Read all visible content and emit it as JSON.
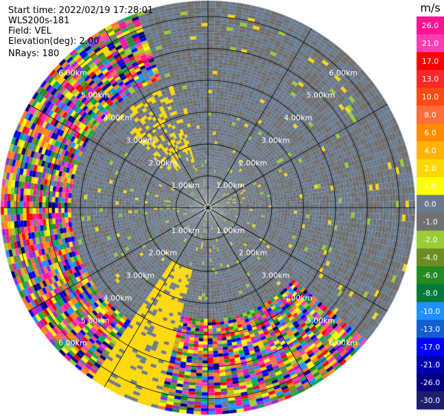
{
  "header": {
    "start_time": "Start time: 2022/02/19 17:28:01",
    "instrument": "WLS200s-181",
    "field": "Field: VEL",
    "elevation": "Elevation(deg): 2.00",
    "nrays": "NRays: 180"
  },
  "chart_data": {
    "type": "heatmap",
    "projection": "polar-ppi",
    "field": "VEL",
    "unit": "m/s",
    "max_range_km": 6.5,
    "range_ring_labels": [
      "1.00km",
      "2.00km",
      "3.00km",
      "4.00km",
      "5.00km",
      "6.00km"
    ],
    "spoke_angles_deg": [
      0,
      30,
      60,
      90,
      120,
      150,
      180,
      210,
      240,
      270,
      300,
      330
    ],
    "colorbar": {
      "title": "m/s",
      "tick_labels": [
        "26.0",
        "21.0",
        "17.0",
        "13.0",
        "10.0",
        "8.0",
        "6.0",
        "4.0",
        "2.0",
        "1.0",
        "0.0",
        "-1.0",
        "-2.0",
        "-4.0",
        "-6.0",
        "-8.0",
        "-10.0",
        "-13.0",
        "-17.0",
        "-21.0",
        "-26.0",
        "-30.0"
      ],
      "colors": [
        "#ff1493",
        "#ff3cb4",
        "#ff0000",
        "#ff2828",
        "#ff4a14",
        "#ff6e3c",
        "#ff8c00",
        "#ffb400",
        "#ffd700",
        "#ffff00",
        "#6a7a8c",
        "#707070",
        "#9acd32",
        "#6b8e23",
        "#228b22",
        "#007a3d",
        "#1e90ff",
        "#1060d0",
        "#0000ff",
        "#0000b0",
        "#000080",
        "#1e1e6e"
      ]
    },
    "sectors": [
      {
        "az_from": 0,
        "az_to": 360,
        "r_from_km": 0.0,
        "r_to_km": 4.5,
        "pattern": "background"
      },
      {
        "az_from": 200,
        "az_to": 340,
        "r_from_km": 4.3,
        "r_to_km": 6.5,
        "pattern": "noise"
      },
      {
        "az_from": 130,
        "az_to": 200,
        "r_from_km": 3.5,
        "r_to_km": 6.5,
        "pattern": "noise"
      },
      {
        "az_from": 195,
        "az_to": 215,
        "r_from_km": 2.0,
        "r_to_km": 6.5,
        "pattern": "yellow"
      },
      {
        "az_from": 315,
        "az_to": 345,
        "r_from_km": 1.5,
        "r_to_km": 4.0,
        "pattern": "yellow-sparse"
      }
    ]
  }
}
